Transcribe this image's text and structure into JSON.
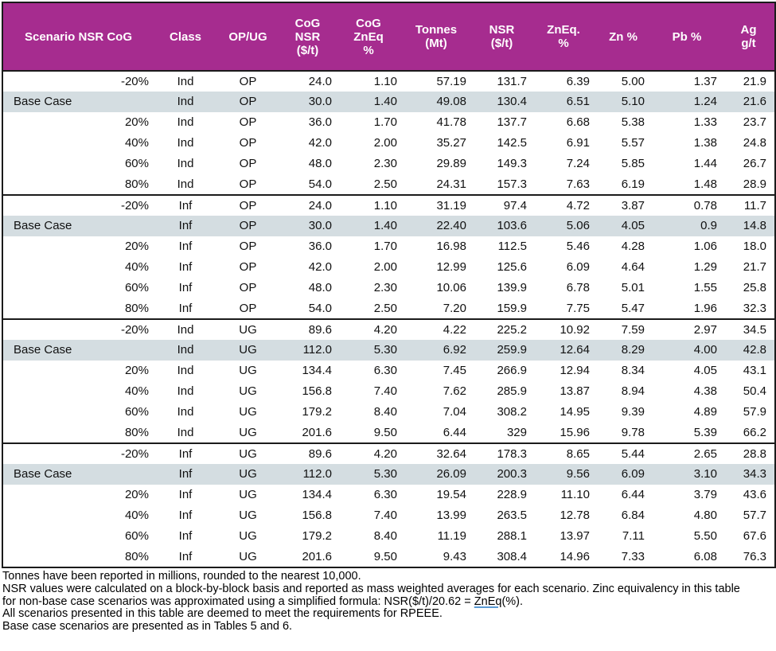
{
  "colors": {
    "header_bg": "#a62c8f",
    "base_row_bg": "#d4dde1",
    "border": "#1b1b1b",
    "link_underline": "#5b9bd5"
  },
  "table": {
    "columns": [
      {
        "id": "scenario",
        "label": [
          "Scenario NSR CoG"
        ]
      },
      {
        "id": "class",
        "label": [
          "Class"
        ]
      },
      {
        "id": "opug",
        "label": [
          "OP/UG"
        ]
      },
      {
        "id": "cog-nsr",
        "label": [
          "CoG",
          "NSR",
          "($/t)"
        ]
      },
      {
        "id": "cog-zneq",
        "label": [
          "CoG",
          "ZnEq",
          "%"
        ]
      },
      {
        "id": "tonnes",
        "label": [
          "Tonnes",
          "(Mt)"
        ]
      },
      {
        "id": "nsr",
        "label": [
          "NSR",
          "($/t)"
        ]
      },
      {
        "id": "zneq",
        "label": [
          "ZnEq.",
          "%"
        ]
      },
      {
        "id": "zn",
        "label": [
          "Zn %"
        ]
      },
      {
        "id": "pb",
        "label": [
          "Pb %"
        ]
      },
      {
        "id": "ag",
        "label": [
          "Ag",
          "g/t"
        ]
      }
    ],
    "groups": [
      {
        "rows": [
          {
            "scenario": "-20%",
            "class": "Ind",
            "opug": "OP",
            "base": false,
            "values": [
              "24.0",
              "1.10",
              "57.19",
              "131.7",
              "6.39",
              "5.00",
              "1.37",
              "21.9"
            ]
          },
          {
            "scenario": "Base Case",
            "class": "Ind",
            "opug": "OP",
            "base": true,
            "values": [
              "30.0",
              "1.40",
              "49.08",
              "130.4",
              "6.51",
              "5.10",
              "1.24",
              "21.6"
            ]
          },
          {
            "scenario": "20%",
            "class": "Ind",
            "opug": "OP",
            "base": false,
            "values": [
              "36.0",
              "1.70",
              "41.78",
              "137.7",
              "6.68",
              "5.38",
              "1.33",
              "23.7"
            ]
          },
          {
            "scenario": "40%",
            "class": "Ind",
            "opug": "OP",
            "base": false,
            "values": [
              "42.0",
              "2.00",
              "35.27",
              "142.5",
              "6.91",
              "5.57",
              "1.38",
              "24.8"
            ]
          },
          {
            "scenario": "60%",
            "class": "Ind",
            "opug": "OP",
            "base": false,
            "values": [
              "48.0",
              "2.30",
              "29.89",
              "149.3",
              "7.24",
              "5.85",
              "1.44",
              "26.7"
            ]
          },
          {
            "scenario": "80%",
            "class": "Ind",
            "opug": "OP",
            "base": false,
            "values": [
              "54.0",
              "2.50",
              "24.31",
              "157.3",
              "7.63",
              "6.19",
              "1.48",
              "28.9"
            ]
          }
        ]
      },
      {
        "rows": [
          {
            "scenario": "-20%",
            "class": "Inf",
            "opug": "OP",
            "base": false,
            "values": [
              "24.0",
              "1.10",
              "31.19",
              "97.4",
              "4.72",
              "3.87",
              "0.78",
              "11.7"
            ]
          },
          {
            "scenario": "Base Case",
            "class": "Inf",
            "opug": "OP",
            "base": true,
            "values": [
              "30.0",
              "1.40",
              "22.40",
              "103.6",
              "5.06",
              "4.05",
              "0.9",
              "14.8"
            ]
          },
          {
            "scenario": "20%",
            "class": "Inf",
            "opug": "OP",
            "base": false,
            "values": [
              "36.0",
              "1.70",
              "16.98",
              "112.5",
              "5.46",
              "4.28",
              "1.06",
              "18.0"
            ]
          },
          {
            "scenario": "40%",
            "class": "Inf",
            "opug": "OP",
            "base": false,
            "values": [
              "42.0",
              "2.00",
              "12.99",
              "125.6",
              "6.09",
              "4.64",
              "1.29",
              "21.7"
            ]
          },
          {
            "scenario": "60%",
            "class": "Inf",
            "opug": "OP",
            "base": false,
            "values": [
              "48.0",
              "2.30",
              "10.06",
              "139.9",
              "6.78",
              "5.01",
              "1.55",
              "25.8"
            ]
          },
          {
            "scenario": "80%",
            "class": "Inf",
            "opug": "OP",
            "base": false,
            "values": [
              "54.0",
              "2.50",
              "7.20",
              "159.9",
              "7.75",
              "5.47",
              "1.96",
              "32.3"
            ]
          }
        ]
      },
      {
        "rows": [
          {
            "scenario": "-20%",
            "class": "Ind",
            "opug": "UG",
            "base": false,
            "values": [
              "89.6",
              "4.20",
              "4.22",
              "225.2",
              "10.92",
              "7.59",
              "2.97",
              "34.5"
            ]
          },
          {
            "scenario": "Base Case",
            "class": "Ind",
            "opug": "UG",
            "base": true,
            "values": [
              "112.0",
              "5.30",
              "6.92",
              "259.9",
              "12.64",
              "8.29",
              "4.00",
              "42.8"
            ]
          },
          {
            "scenario": "20%",
            "class": "Ind",
            "opug": "UG",
            "base": false,
            "values": [
              "134.4",
              "6.30",
              "7.45",
              "266.9",
              "12.94",
              "8.34",
              "4.05",
              "43.1"
            ]
          },
          {
            "scenario": "40%",
            "class": "Ind",
            "opug": "UG",
            "base": false,
            "values": [
              "156.8",
              "7.40",
              "7.62",
              "285.9",
              "13.87",
              "8.94",
              "4.38",
              "50.4"
            ]
          },
          {
            "scenario": "60%",
            "class": "Ind",
            "opug": "UG",
            "base": false,
            "values": [
              "179.2",
              "8.40",
              "7.04",
              "308.2",
              "14.95",
              "9.39",
              "4.89",
              "57.9"
            ]
          },
          {
            "scenario": "80%",
            "class": "Ind",
            "opug": "UG",
            "base": false,
            "values": [
              "201.6",
              "9.50",
              "6.44",
              "329",
              "15.96",
              "9.78",
              "5.39",
              "66.2"
            ]
          }
        ]
      },
      {
        "rows": [
          {
            "scenario": "-20%",
            "class": "Inf",
            "opug": "UG",
            "base": false,
            "values": [
              "89.6",
              "4.20",
              "32.64",
              "178.3",
              "8.65",
              "5.44",
              "2.65",
              "28.8"
            ]
          },
          {
            "scenario": "Base Case",
            "class": "Inf",
            "opug": "UG",
            "base": true,
            "values": [
              "112.0",
              "5.30",
              "26.09",
              "200.3",
              "9.56",
              "6.09",
              "3.10",
              "34.3"
            ]
          },
          {
            "scenario": "20%",
            "class": "Inf",
            "opug": "UG",
            "base": false,
            "values": [
              "134.4",
              "6.30",
              "19.54",
              "228.9",
              "11.10",
              "6.44",
              "3.79",
              "43.6"
            ]
          },
          {
            "scenario": "40%",
            "class": "Inf",
            "opug": "UG",
            "base": false,
            "values": [
              "156.8",
              "7.40",
              "13.99",
              "263.5",
              "12.78",
              "6.84",
              "4.80",
              "57.7"
            ]
          },
          {
            "scenario": "60%",
            "class": "Inf",
            "opug": "UG",
            "base": false,
            "values": [
              "179.2",
              "8.40",
              "11.19",
              "288.1",
              "13.97",
              "7.11",
              "5.50",
              "67.6"
            ]
          },
          {
            "scenario": "80%",
            "class": "Inf",
            "opug": "UG",
            "base": false,
            "values": [
              "201.6",
              "9.50",
              "9.43",
              "308.4",
              "14.96",
              "7.33",
              "6.08",
              "76.3"
            ]
          }
        ]
      }
    ]
  },
  "footnotes": {
    "lines": [
      {
        "text": "Tonnes have been reported in millions, rounded to the nearest 10,000."
      },
      {
        "text": "NSR values were calculated on a block-by-block basis and reported as mass weighted averages for each scenario. Zinc equivalency in this table"
      },
      {
        "prefix": "for non-base case scenarios was approximated using a simplified formula: NSR($/t)/20.62 = ",
        "link": "ZnEq",
        "suffix": "(%)."
      },
      {
        "text": "All scenarios presented in this table are deemed to meet the requirements for RPEEE."
      },
      {
        "text": "Base case scenarios are presented as in Tables 5 and 6."
      }
    ]
  }
}
